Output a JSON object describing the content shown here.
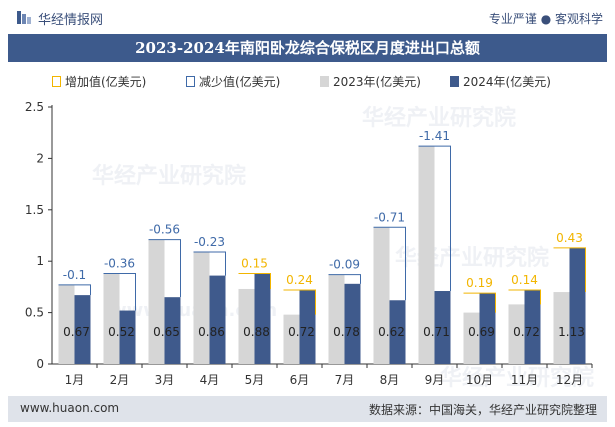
{
  "header": {
    "brand": "华经情报网",
    "slogan": "专业严谨 ● 客观科学"
  },
  "title": "2023-2024年南阳卧龙综合保税区月度进出口总额",
  "legend": [
    "增加值(亿美元)",
    "减少值(亿美元)",
    "2023年(亿美元)",
    "2024年(亿美元)"
  ],
  "footer": {
    "url": "www.huaon.com",
    "source": "数据来源：中国海关，华经产业研究院整理"
  },
  "watermarks": [
    "华经产业研究院",
    "www.huaon.com"
  ],
  "colors": {
    "title_bg": "#3d5a8c",
    "bar_2023": "#d6d6d6",
    "bar_2024": "#3f5a8c",
    "increase": "#f2b500",
    "decrease": "#3f6aa8",
    "footer_bg": "#dfe3ea"
  },
  "chart_data": {
    "type": "bar",
    "categories": [
      "1月",
      "2月",
      "3月",
      "4月",
      "5月",
      "6月",
      "7月",
      "8月",
      "9月",
      "10月",
      "11月",
      "12月"
    ],
    "series": [
      {
        "name": "2023年(亿美元)",
        "values": [
          0.77,
          0.88,
          1.21,
          1.09,
          0.73,
          0.48,
          0.87,
          1.33,
          2.12,
          0.5,
          0.58,
          0.7
        ]
      },
      {
        "name": "2024年(亿美元)",
        "values": [
          0.67,
          0.52,
          0.65,
          0.86,
          0.88,
          0.72,
          0.78,
          0.62,
          0.71,
          0.69,
          0.72,
          1.13
        ]
      }
    ],
    "change_labels": [
      "-0.1",
      "-0.36",
      "-0.56",
      "-0.23",
      "0.15",
      "0.24",
      "-0.09",
      "-0.71",
      "-1.41",
      "0.19",
      "0.14",
      "0.43"
    ],
    "value_labels": [
      "0.67",
      "0.52",
      "0.65",
      "0.86",
      "0.88",
      "0.72",
      "0.78",
      "0.62",
      "0.71",
      "0.69",
      "0.72",
      "1.13"
    ],
    "ylim": [
      0,
      2.5
    ],
    "yticks": [
      "0",
      "0.5",
      "1",
      "1.5",
      "2",
      "2.5"
    ],
    "title": "2023-2024年南阳卧龙综合保税区月度进出口总额",
    "xlabel": "",
    "ylabel": "",
    "grid": false,
    "legend_position": "top"
  }
}
